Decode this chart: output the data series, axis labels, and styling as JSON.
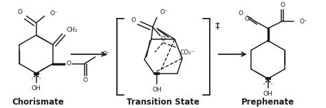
{
  "background_color": "#ffffff",
  "label_chorismate": "Chorismate",
  "label_transition": "Transition State",
  "label_prephenate": "Prephenate",
  "label_fontsize": 8.5,
  "label_fontweight": "bold",
  "figsize": [
    4.74,
    1.57
  ],
  "dpi": 100,
  "line_color": "#1a1a1a",
  "text_color": "#1a1a1a"
}
